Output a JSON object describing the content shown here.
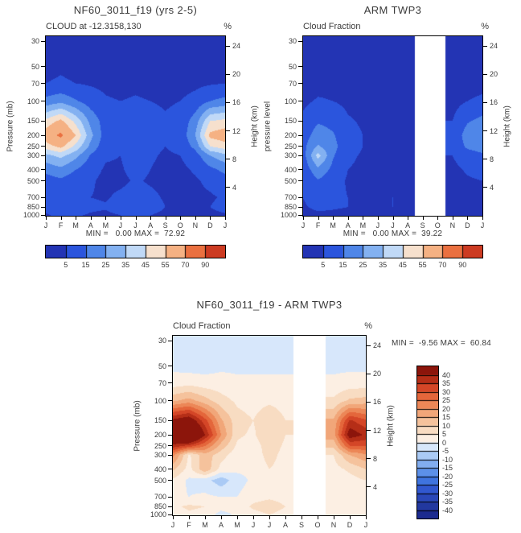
{
  "panels": [
    {
      "title": "NF60_3011_f19 (yrs 2-5)",
      "subtitle": "CLOUD at -12.3158,130",
      "unit": "%",
      "ylabel_left": "Pressure (mb)",
      "ylabel_right": "Height (km)",
      "minmax": "MIN =   0.00 MAX =  72.92"
    },
    {
      "title": "ARM TWP3",
      "subtitle": "Cloud Fraction",
      "unit": "%",
      "ylabel_left": "pressure level",
      "ylabel_right": "Height (km)",
      "minmax": "MIN =   0.00 MAX =  39.22"
    },
    {
      "title": "NF60_3011_f19 - ARM TWP3",
      "subtitle": "Cloud Fraction",
      "unit": "%",
      "ylabel_left": "Pressure (mb)",
      "ylabel_right": "Height (km)",
      "minmax": "MIN =  -9.56 MAX =  60.84"
    }
  ],
  "chart_data": [
    {
      "type": "heatmap",
      "subtype": "filled-contour",
      "title": "NF60_3011_f19 (yrs 2-5) CLOUD at -12.3158,130",
      "x_categories": [
        "J",
        "F",
        "M",
        "A",
        "M",
        "J",
        "J",
        "A",
        "S",
        "O",
        "N",
        "D",
        "J"
      ],
      "pressure_levels_mb": [
        30,
        50,
        70,
        100,
        150,
        200,
        250,
        300,
        400,
        500,
        700,
        850,
        1000
      ],
      "height_ticks_km": [
        4,
        8,
        12,
        16,
        20,
        24
      ],
      "contour_levels": [
        5,
        15,
        25,
        35,
        45,
        55,
        70,
        90
      ],
      "colors": [
        "#2334b4",
        "#2b55dd",
        "#4f86e8",
        "#83b1f1",
        "#c0d9f7",
        "#f6e0cd",
        "#f5b183",
        "#ea7040",
        "#cc3b22"
      ],
      "min": 0.0,
      "max": 72.92,
      "missing_color": "#ffffff",
      "values": [
        [
          3,
          3,
          3,
          3,
          2,
          2,
          2,
          2,
          2,
          2,
          2,
          3,
          3
        ],
        [
          3,
          4,
          3,
          3,
          2,
          2,
          2,
          2,
          2,
          2,
          2,
          3,
          3
        ],
        [
          5,
          6,
          5,
          4,
          3,
          2,
          3,
          2,
          2,
          2,
          3,
          4,
          5
        ],
        [
          18,
          22,
          16,
          10,
          6,
          5,
          6,
          5,
          4,
          5,
          8,
          15,
          18
        ],
        [
          48,
          58,
          42,
          22,
          10,
          8,
          12,
          8,
          6,
          8,
          20,
          45,
          48
        ],
        [
          62,
          73,
          55,
          28,
          10,
          7,
          14,
          8,
          6,
          8,
          25,
          58,
          62
        ],
        [
          50,
          58,
          42,
          22,
          8,
          6,
          12,
          7,
          5,
          7,
          18,
          45,
          50
        ],
        [
          32,
          38,
          28,
          14,
          6,
          5,
          10,
          6,
          4,
          5,
          10,
          25,
          32
        ],
        [
          18,
          22,
          15,
          8,
          4,
          4,
          8,
          5,
          3,
          3,
          6,
          12,
          18
        ],
        [
          10,
          13,
          9,
          6,
          3,
          3,
          6,
          4,
          3,
          3,
          4,
          7,
          10
        ],
        [
          6,
          9,
          8,
          5,
          4,
          7,
          9,
          7,
          4,
          3,
          3,
          4,
          6
        ],
        [
          8,
          13,
          11,
          7,
          6,
          10,
          13,
          9,
          5,
          4,
          4,
          5,
          8
        ],
        [
          4,
          7,
          6,
          4,
          3,
          5,
          7,
          5,
          3,
          2,
          2,
          3,
          4
        ]
      ]
    },
    {
      "type": "heatmap",
      "subtype": "filled-contour",
      "title": "ARM TWP3 Cloud Fraction",
      "x_categories": [
        "J",
        "F",
        "M",
        "A",
        "M",
        "J",
        "J",
        "A",
        "S",
        "O",
        "N",
        "D",
        "J"
      ],
      "pressure_levels_mb": [
        30,
        50,
        70,
        100,
        150,
        200,
        250,
        300,
        400,
        500,
        700,
        850,
        1000
      ],
      "height_ticks_km": [
        4,
        8,
        12,
        16,
        20,
        24
      ],
      "contour_levels": [
        5,
        15,
        25,
        35,
        45,
        55,
        70,
        90
      ],
      "colors": [
        "#2334b4",
        "#2b55dd",
        "#4f86e8",
        "#83b1f1",
        "#c0d9f7",
        "#f6e0cd",
        "#f5b183",
        "#ea7040",
        "#cc3b22"
      ],
      "min": 0.0,
      "max": 39.22,
      "missing_color": "#ffffff",
      "values": [
        [
          1,
          1,
          1,
          1,
          1,
          1,
          1,
          1,
          null,
          null,
          1,
          1,
          1
        ],
        [
          1,
          1,
          1,
          1,
          1,
          1,
          1,
          1,
          null,
          null,
          1,
          1,
          1
        ],
        [
          1,
          2,
          2,
          1,
          1,
          1,
          1,
          1,
          null,
          null,
          1,
          1,
          2
        ],
        [
          3,
          6,
          5,
          3,
          2,
          2,
          2,
          2,
          null,
          null,
          2,
          5,
          7
        ],
        [
          7,
          14,
          12,
          6,
          4,
          3,
          3,
          3,
          null,
          null,
          5,
          14,
          18
        ],
        [
          10,
          20,
          16,
          8,
          5,
          4,
          4,
          3,
          null,
          null,
          7,
          20,
          24
        ],
        [
          12,
          26,
          18,
          9,
          5,
          4,
          4,
          3,
          null,
          null,
          7,
          17,
          20
        ],
        [
          10,
          39,
          16,
          7,
          4,
          3,
          3,
          3,
          null,
          null,
          5,
          10,
          13
        ],
        [
          8,
          22,
          12,
          5,
          3,
          3,
          3,
          2,
          null,
          null,
          3,
          6,
          8
        ],
        [
          6,
          14,
          9,
          4,
          3,
          2,
          3,
          2,
          null,
          null,
          2,
          4,
          5
        ],
        [
          5,
          9,
          7,
          5,
          4,
          4,
          5,
          4,
          null,
          null,
          2,
          3,
          4
        ],
        [
          4,
          7,
          6,
          5,
          4,
          4,
          5,
          4,
          null,
          null,
          2,
          2,
          3
        ],
        [
          2,
          3,
          3,
          2,
          2,
          2,
          2,
          2,
          null,
          null,
          1,
          1,
          2
        ]
      ]
    },
    {
      "type": "heatmap",
      "subtype": "filled-contour-difference",
      "title": "NF60_3011_f19 - ARM TWP3 Cloud Fraction",
      "x_categories": [
        "J",
        "F",
        "M",
        "A",
        "M",
        "J",
        "J",
        "A",
        "S",
        "O",
        "N",
        "D",
        "J"
      ],
      "pressure_levels_mb": [
        30,
        50,
        70,
        100,
        150,
        200,
        250,
        300,
        400,
        500,
        700,
        850,
        1000
      ],
      "height_ticks_km": [
        4,
        8,
        12,
        16,
        20,
        24
      ],
      "contour_levels": [
        -40,
        -35,
        -30,
        -25,
        -20,
        -15,
        -10,
        -5,
        0,
        5,
        10,
        15,
        20,
        25,
        30,
        35,
        40
      ],
      "colors": [
        "#1c2b8f",
        "#22389f",
        "#2a47b8",
        "#3158cf",
        "#3f74df",
        "#5c90e8",
        "#82adef",
        "#aacaf5",
        "#d7e7fb",
        "#fcefe3",
        "#f8dcc2",
        "#f5c29c",
        "#f1a679",
        "#ec8757",
        "#e4663b",
        "#d44627",
        "#b52e17",
        "#8c150b"
      ],
      "min": -9.56,
      "max": 60.84,
      "missing_color": "#ffffff",
      "values": [
        [
          -2,
          -2,
          -2,
          -2,
          -2,
          -2,
          -2,
          -2,
          null,
          null,
          -2,
          -2,
          -2
        ],
        [
          -1,
          -2,
          -2,
          -1,
          -1,
          -1,
          -1,
          -1,
          null,
          null,
          -1,
          -1,
          -1
        ],
        [
          2,
          3,
          2,
          2,
          1,
          1,
          1,
          1,
          null,
          null,
          1,
          2,
          2
        ],
        [
          14,
          17,
          12,
          7,
          4,
          3,
          4,
          3,
          null,
          null,
          6,
          11,
          12
        ],
        [
          42,
          46,
          32,
          16,
          7,
          5,
          9,
          5,
          null,
          null,
          16,
          36,
          31
        ],
        [
          52,
          61,
          40,
          20,
          6,
          4,
          10,
          5,
          null,
          null,
          18,
          44,
          39
        ],
        [
          38,
          33,
          25,
          13,
          4,
          2,
          8,
          4,
          null,
          null,
          11,
          30,
          30
        ],
        [
          22,
          4,
          13,
          7,
          2,
          2,
          7,
          3,
          null,
          null,
          5,
          15,
          19
        ],
        [
          11,
          3,
          14,
          3,
          1,
          1,
          5,
          3,
          null,
          null,
          3,
          6,
          10
        ],
        [
          4,
          -1,
          -3,
          -8,
          -2,
          1,
          3,
          2,
          null,
          null,
          2,
          3,
          5
        ],
        [
          1,
          0,
          1,
          0,
          0,
          3,
          4,
          3,
          null,
          null,
          1,
          1,
          2
        ],
        [
          4,
          6,
          5,
          2,
          2,
          6,
          8,
          5,
          null,
          null,
          2,
          3,
          5
        ],
        [
          2,
          4,
          3,
          -2,
          1,
          3,
          5,
          3,
          null,
          null,
          1,
          2,
          2
        ]
      ]
    }
  ]
}
